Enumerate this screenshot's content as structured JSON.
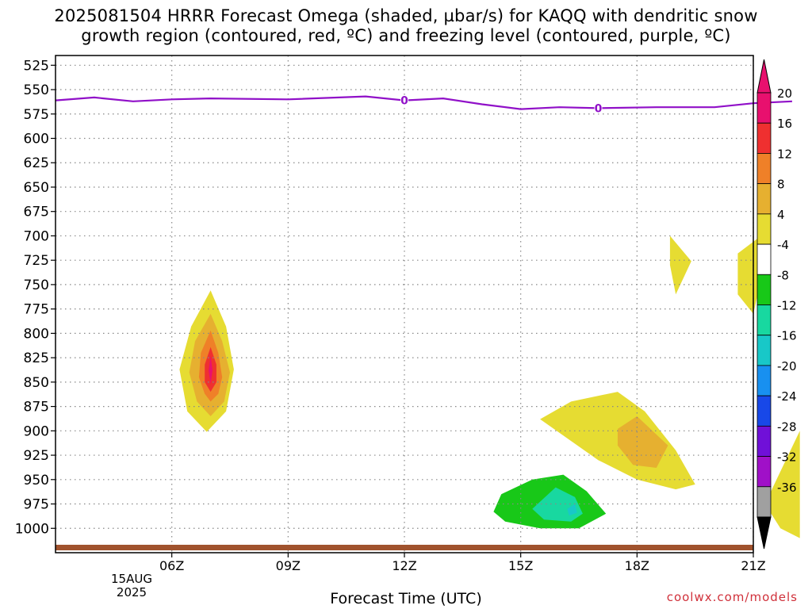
{
  "header": {
    "title_line1": "2025081504 HRRR Forecast Omega (shaded, µbar/s) for KAQQ with dendritic snow",
    "title_line2": "growth region (contoured, red, ºC) and freezing level (contoured, purple, ºC)"
  },
  "footer": {
    "xlabel": "Forecast Time (UTC)",
    "date_line1": "15AUG",
    "date_line2": "2025",
    "watermark": "coolwx.com/models"
  },
  "chart_data": {
    "type": "contourf",
    "x_ticks": [
      "06Z",
      "09Z",
      "12Z",
      "15Z",
      "18Z",
      "21Z"
    ],
    "x_range_hours": [
      3.0,
      21.0
    ],
    "y_ticks": [
      525,
      550,
      575,
      600,
      625,
      650,
      675,
      700,
      725,
      750,
      775,
      800,
      825,
      850,
      875,
      900,
      925,
      950,
      975,
      1000
    ],
    "y_range_hPa": [
      515,
      1025
    ],
    "y_direction": "pressure, increasing downward",
    "grid": true,
    "colorbar": {
      "levels": [
        "20",
        "16",
        "12",
        "8",
        "4",
        "-4",
        "-8",
        "-12",
        "-16",
        "-20",
        "-24",
        "-28",
        "-32",
        "-36"
      ],
      "colors": [
        "#e8106e",
        "#ef3030",
        "#ef8028",
        "#e6b030",
        "#e6dc32",
        "#ffffff",
        "#18c818",
        "#18d8a0",
        "#18c8c8",
        "#1890f0",
        "#1848e8",
        "#7010d8",
        "#a010c8",
        "#a0a0a0"
      ],
      "top_arrow_color": "#e8106e",
      "bottom_arrow_color": "#000000"
    },
    "freezing_level": {
      "color": "#9010c8",
      "label": "0",
      "points": [
        [
          3.0,
          561
        ],
        [
          4.0,
          558
        ],
        [
          5.0,
          562
        ],
        [
          6.0,
          560
        ],
        [
          7.0,
          559
        ],
        [
          9.0,
          560
        ],
        [
          11.0,
          557
        ],
        [
          12.0,
          561
        ],
        [
          13.0,
          559
        ],
        [
          14.0,
          565
        ],
        [
          15.0,
          570
        ],
        [
          16.0,
          568
        ],
        [
          17.0,
          569
        ],
        [
          18.5,
          568
        ],
        [
          20.0,
          568
        ],
        [
          21.0,
          564
        ],
        [
          22.0,
          562
        ]
      ]
    },
    "ground_color": "#a0522d",
    "omega_features": [
      {
        "level": "4",
        "color": "#e6dc32",
        "points": [
          [
            7.0,
            756
          ],
          [
            6.5,
            793
          ],
          [
            6.2,
            837
          ],
          [
            6.4,
            880
          ],
          [
            6.9,
            901
          ],
          [
            7.4,
            880
          ],
          [
            7.6,
            837
          ],
          [
            7.4,
            793
          ]
        ]
      },
      {
        "level": "8",
        "color": "#e6b030",
        "points": [
          [
            7.0,
            780
          ],
          [
            6.6,
            808
          ],
          [
            6.45,
            840
          ],
          [
            6.65,
            870
          ],
          [
            7.0,
            885
          ],
          [
            7.35,
            870
          ],
          [
            7.5,
            840
          ],
          [
            7.3,
            808
          ]
        ]
      },
      {
        "level": "12",
        "color": "#ef8028",
        "points": [
          [
            7.0,
            797
          ],
          [
            6.75,
            820
          ],
          [
            6.7,
            845
          ],
          [
            6.85,
            862
          ],
          [
            7.0,
            870
          ],
          [
            7.2,
            862
          ],
          [
            7.3,
            845
          ],
          [
            7.2,
            820
          ]
        ]
      },
      {
        "level": "16",
        "color": "#ef3030",
        "points": [
          [
            7.0,
            814
          ],
          [
            6.85,
            832
          ],
          [
            6.85,
            850
          ],
          [
            7.0,
            860
          ],
          [
            7.15,
            850
          ],
          [
            7.15,
            832
          ]
        ]
      },
      {
        "level": "20",
        "color": "#e8106e",
        "points": [
          [
            7.0,
            823
          ],
          [
            6.95,
            838
          ],
          [
            7.0,
            852
          ],
          [
            7.05,
            838
          ]
        ]
      },
      {
        "level": "4",
        "color": "#e6dc32",
        "points": [
          [
            15.5,
            888
          ],
          [
            16.3,
            870
          ],
          [
            17.5,
            860
          ],
          [
            18.2,
            880
          ],
          [
            19.0,
            920
          ],
          [
            19.5,
            955
          ],
          [
            19.0,
            960
          ],
          [
            18.0,
            950
          ],
          [
            17.0,
            930
          ]
        ]
      },
      {
        "level": "8",
        "color": "#e6b030",
        "points": [
          [
            17.5,
            898
          ],
          [
            18.0,
            885
          ],
          [
            18.8,
            915
          ],
          [
            18.5,
            938
          ],
          [
            17.9,
            935
          ],
          [
            17.5,
            915
          ]
        ]
      },
      {
        "level": "4",
        "color": "#e6dc32",
        "points": [
          [
            18.85,
            700
          ],
          [
            19.4,
            726
          ],
          [
            19.0,
            760
          ],
          [
            18.85,
            730
          ]
        ]
      },
      {
        "level": "4",
        "color": "#e6dc32",
        "points": [
          [
            20.6,
            718
          ],
          [
            21.1,
            703
          ],
          [
            21.2,
            745
          ],
          [
            21.0,
            780
          ],
          [
            20.6,
            760
          ]
        ]
      },
      {
        "level": "4",
        "color": "#e6dc32",
        "points": [
          [
            22.2,
            900
          ],
          [
            21.6,
            950
          ],
          [
            21.3,
            975
          ],
          [
            21.7,
            1000
          ],
          [
            22.2,
            1010
          ]
        ]
      },
      {
        "level": "-4",
        "color": "#18c818",
        "points": [
          [
            14.3,
            983
          ],
          [
            14.5,
            965
          ],
          [
            15.3,
            950
          ],
          [
            16.1,
            945
          ],
          [
            16.7,
            962
          ],
          [
            17.2,
            985
          ],
          [
            16.5,
            1000
          ],
          [
            15.5,
            1000
          ],
          [
            14.6,
            993
          ]
        ]
      },
      {
        "level": "-8",
        "color": "#18d8a0",
        "points": [
          [
            15.3,
            980
          ],
          [
            15.9,
            958
          ],
          [
            16.4,
            968
          ],
          [
            16.6,
            985
          ],
          [
            16.3,
            993
          ],
          [
            15.6,
            991
          ]
        ]
      },
      {
        "level": "-12",
        "color": "#18c8c8",
        "points": [
          [
            16.2,
            980
          ],
          [
            16.4,
            975
          ],
          [
            16.45,
            984
          ],
          [
            16.25,
            987
          ]
        ]
      }
    ]
  }
}
